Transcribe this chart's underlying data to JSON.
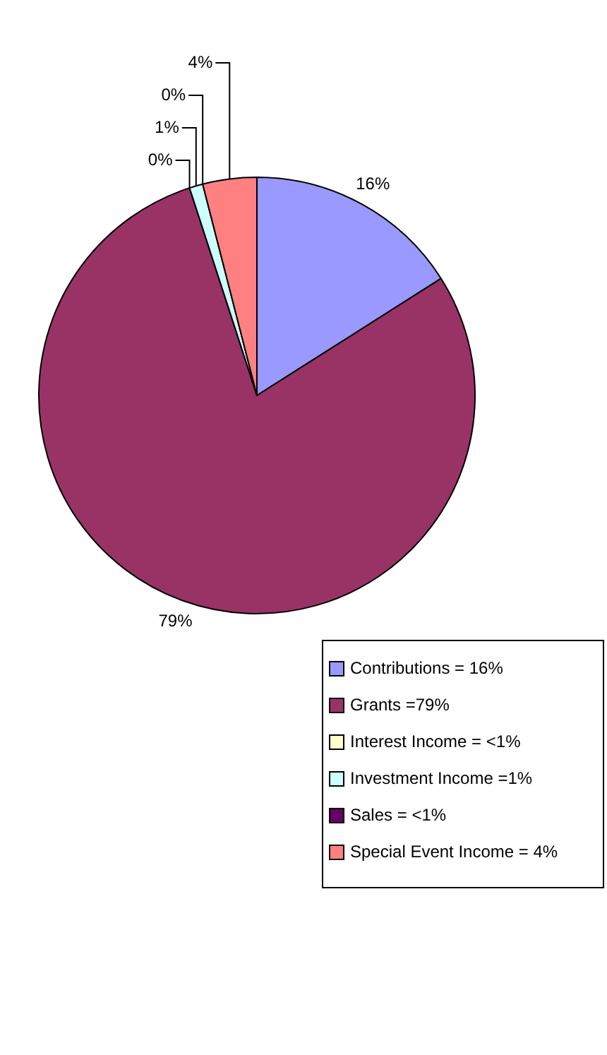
{
  "chart_data": {
    "type": "pie",
    "categories": [
      "Contributions = 16%",
      "Grants =79%",
      "Interest Income = <1%",
      "Investment Income =1%",
      "Sales = <1%",
      "Special Event Income = 4%"
    ],
    "values": [
      16,
      79,
      0,
      1,
      0,
      4
    ],
    "value_labels": [
      "16%",
      "79%",
      "0%",
      "1%",
      "0%",
      "4%"
    ],
    "colors": [
      "#9999ff",
      "#993366",
      "#ffffcc",
      "#ccffff",
      "#660066",
      "#ff8080"
    ],
    "legend": "bottom right"
  }
}
